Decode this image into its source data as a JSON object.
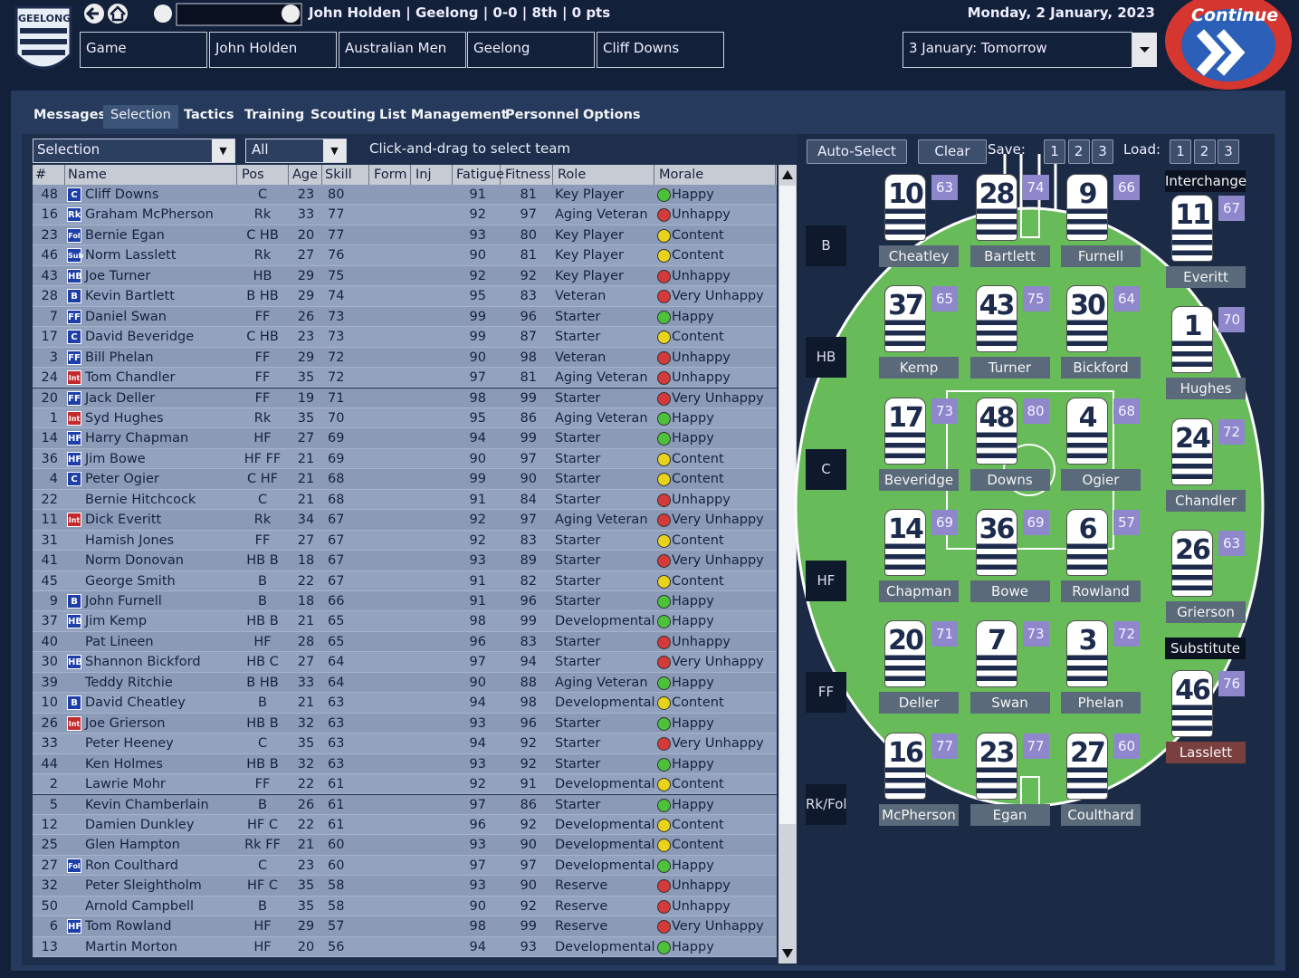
{
  "header": {
    "badge": "GEELONG",
    "status": "John Holden | Geelong | 0-0 | 8th | 0 pts",
    "date": "Monday, 2 January, 2023",
    "breadcrumbs": [
      "Game",
      "John Holden",
      "Australian Men",
      "Geelong",
      "Cliff Downs"
    ],
    "next_day": "3 January: Tomorrow",
    "continue": "Continue"
  },
  "tabs": [
    "Messages",
    "Selection",
    "Tactics",
    "Training",
    "Scouting",
    "List Management",
    "Personnel",
    "Options"
  ],
  "filters": {
    "view": "Selection",
    "group": "All",
    "hint": "Click-and-drag to select team"
  },
  "buttons": {
    "auto": "Auto-Select",
    "clear": "Clear",
    "save": "Save:",
    "save_slots": [
      1,
      2,
      3
    ],
    "load": "Load:",
    "load_slots": [
      1,
      2,
      3
    ]
  },
  "table": {
    "columns": [
      "#",
      "Name",
      "Pos",
      "Age",
      "Skill",
      "Form",
      "Inj",
      "Fatigue",
      "Fitness",
      "Role",
      "Morale"
    ],
    "tag_colors": {
      "Int": "#c32a2e"
    },
    "morale_colors": {
      "Happy": "#4cc23a",
      "Content": "#e8d21c",
      "Unhappy": "#d43a3a",
      "Very Unhappy": "#d43a3a"
    },
    "rows": [
      {
        "num": 48,
        "tag": "C",
        "name": "Cliff Downs",
        "pos": "C",
        "age": 23,
        "skill": 80,
        "fatigue": 91,
        "fitness": 81,
        "role": "Key Player",
        "morale": "Happy"
      },
      {
        "num": 16,
        "tag": "Rk",
        "name": "Graham McPherson",
        "pos": "Rk",
        "age": 33,
        "skill": 77,
        "fatigue": 92,
        "fitness": 97,
        "role": "Aging Veteran",
        "morale": "Unhappy"
      },
      {
        "num": 23,
        "tag": "Fol",
        "name": "Bernie Egan",
        "pos": "C HB",
        "age": 20,
        "skill": 77,
        "fatigue": 93,
        "fitness": 80,
        "role": "Key Player",
        "morale": "Content"
      },
      {
        "num": 46,
        "tag": "Sub",
        "name": "Norm Lasslett",
        "pos": "Rk",
        "age": 27,
        "skill": 76,
        "fatigue": 90,
        "fitness": 81,
        "role": "Key Player",
        "morale": "Content"
      },
      {
        "num": 43,
        "tag": "HB",
        "name": "Joe Turner",
        "pos": "HB",
        "age": 29,
        "skill": 75,
        "fatigue": 92,
        "fitness": 92,
        "role": "Key Player",
        "morale": "Unhappy"
      },
      {
        "num": 28,
        "tag": "B",
        "name": "Kevin Bartlett",
        "pos": "B HB",
        "age": 29,
        "skill": 74,
        "fatigue": 95,
        "fitness": 83,
        "role": "Veteran",
        "morale": "Very Unhappy"
      },
      {
        "num": 7,
        "tag": "FF",
        "name": "Daniel Swan",
        "pos": "FF",
        "age": 26,
        "skill": 73,
        "fatigue": 99,
        "fitness": 96,
        "role": "Starter",
        "morale": "Happy"
      },
      {
        "num": 17,
        "tag": "C",
        "name": "David Beveridge",
        "pos": "C HB",
        "age": 23,
        "skill": 73,
        "fatigue": 99,
        "fitness": 87,
        "role": "Starter",
        "morale": "Content"
      },
      {
        "num": 3,
        "tag": "FF",
        "name": "Bill Phelan",
        "pos": "FF",
        "age": 29,
        "skill": 72,
        "fatigue": 90,
        "fitness": 98,
        "role": "Veteran",
        "morale": "Unhappy"
      },
      {
        "num": 24,
        "tag": "Int",
        "name": "Tom Chandler",
        "pos": "FF",
        "age": 35,
        "skill": 72,
        "fatigue": 97,
        "fitness": 81,
        "role": "Aging Veteran",
        "morale": "Unhappy"
      },
      {
        "num": 20,
        "tag": "FF",
        "name": "Jack Deller",
        "pos": "FF",
        "age": 19,
        "skill": 71,
        "fatigue": 98,
        "fitness": 99,
        "role": "Starter",
        "morale": "Very Unhappy"
      },
      {
        "num": 1,
        "tag": "Int",
        "name": "Syd Hughes",
        "pos": "Rk",
        "age": 35,
        "skill": 70,
        "fatigue": 95,
        "fitness": 86,
        "role": "Aging Veteran",
        "morale": "Happy"
      },
      {
        "num": 14,
        "tag": "HF",
        "name": "Harry Chapman",
        "pos": "HF",
        "age": 27,
        "skill": 69,
        "fatigue": 94,
        "fitness": 99,
        "role": "Starter",
        "morale": "Happy"
      },
      {
        "num": 36,
        "tag": "HF",
        "name": "Jim Bowe",
        "pos": "HF FF",
        "age": 21,
        "skill": 69,
        "fatigue": 90,
        "fitness": 97,
        "role": "Starter",
        "morale": "Content"
      },
      {
        "num": 4,
        "tag": "C",
        "name": "Peter Ogier",
        "pos": "C HF",
        "age": 21,
        "skill": 68,
        "fatigue": 99,
        "fitness": 90,
        "role": "Starter",
        "morale": "Content"
      },
      {
        "num": 22,
        "name": "Bernie Hitchcock",
        "pos": "C",
        "age": 21,
        "skill": 68,
        "fatigue": 91,
        "fitness": 84,
        "role": "Starter",
        "morale": "Unhappy"
      },
      {
        "num": 11,
        "tag": "Int",
        "name": "Dick Everitt",
        "pos": "Rk",
        "age": 34,
        "skill": 67,
        "fatigue": 92,
        "fitness": 97,
        "role": "Aging Veteran",
        "morale": "Very Unhappy"
      },
      {
        "num": 31,
        "name": "Hamish Jones",
        "pos": "FF",
        "age": 27,
        "skill": 67,
        "fatigue": 92,
        "fitness": 83,
        "role": "Starter",
        "morale": "Content"
      },
      {
        "num": 41,
        "name": "Norm Donovan",
        "pos": "HB B",
        "age": 18,
        "skill": 67,
        "fatigue": 93,
        "fitness": 89,
        "role": "Starter",
        "morale": "Very Unhappy"
      },
      {
        "num": 45,
        "name": "George Smith",
        "pos": "B",
        "age": 22,
        "skill": 67,
        "fatigue": 91,
        "fitness": 82,
        "role": "Starter",
        "morale": "Content"
      },
      {
        "num": 9,
        "tag": "B",
        "name": "John Furnell",
        "pos": "B",
        "age": 18,
        "skill": 66,
        "fatigue": 91,
        "fitness": 96,
        "role": "Starter",
        "morale": "Happy"
      },
      {
        "num": 37,
        "tag": "HB",
        "name": "Jim Kemp",
        "pos": "HB B",
        "age": 21,
        "skill": 65,
        "fatigue": 98,
        "fitness": 99,
        "role": "Developmental",
        "morale": "Happy"
      },
      {
        "num": 40,
        "name": "Pat Lineen",
        "pos": "HF",
        "age": 28,
        "skill": 65,
        "fatigue": 96,
        "fitness": 83,
        "role": "Starter",
        "morale": "Unhappy"
      },
      {
        "num": 30,
        "tag": "HB",
        "name": "Shannon Bickford",
        "pos": "HB C",
        "age": 27,
        "skill": 64,
        "fatigue": 97,
        "fitness": 94,
        "role": "Starter",
        "morale": "Very Unhappy"
      },
      {
        "num": 39,
        "name": "Teddy Ritchie",
        "pos": "B HB",
        "age": 33,
        "skill": 64,
        "fatigue": 90,
        "fitness": 88,
        "role": "Aging Veteran",
        "morale": "Happy"
      },
      {
        "num": 10,
        "tag": "B",
        "name": "David Cheatley",
        "pos": "B",
        "age": 21,
        "skill": 63,
        "fatigue": 94,
        "fitness": 98,
        "role": "Developmental",
        "morale": "Content"
      },
      {
        "num": 26,
        "tag": "Int",
        "name": "Joe Grierson",
        "pos": "HB B",
        "age": 32,
        "skill": 63,
        "fatigue": 93,
        "fitness": 96,
        "role": "Starter",
        "morale": "Happy"
      },
      {
        "num": 33,
        "name": "Peter Heeney",
        "pos": "C",
        "age": 35,
        "skill": 63,
        "fatigue": 94,
        "fitness": 92,
        "role": "Starter",
        "morale": "Very Unhappy"
      },
      {
        "num": 44,
        "name": "Ken Holmes",
        "pos": "HB B",
        "age": 32,
        "skill": 63,
        "fatigue": 93,
        "fitness": 92,
        "role": "Starter",
        "morale": "Happy"
      },
      {
        "num": 2,
        "name": "Lawrie Mohr",
        "pos": "FF",
        "age": 22,
        "skill": 61,
        "fatigue": 92,
        "fitness": 91,
        "role": "Developmental",
        "morale": "Content"
      },
      {
        "num": 5,
        "name": "Kevin Chamberlain",
        "pos": "B",
        "age": 26,
        "skill": 61,
        "fatigue": 97,
        "fitness": 86,
        "role": "Starter",
        "morale": "Happy"
      },
      {
        "num": 12,
        "name": "Damien Dunkley",
        "pos": "HF C",
        "age": 22,
        "skill": 61,
        "fatigue": 96,
        "fitness": 92,
        "role": "Developmental",
        "morale": "Content"
      },
      {
        "num": 25,
        "name": "Glen Hampton",
        "pos": "Rk FF",
        "age": 21,
        "skill": 60,
        "fatigue": 93,
        "fitness": 90,
        "role": "Developmental",
        "morale": "Content"
      },
      {
        "num": 27,
        "tag": "Fol",
        "name": "Ron Coulthard",
        "pos": "C",
        "age": 23,
        "skill": 60,
        "fatigue": 97,
        "fitness": 97,
        "role": "Developmental",
        "morale": "Happy"
      },
      {
        "num": 32,
        "name": "Peter Sleightholm",
        "pos": "HF C",
        "age": 35,
        "skill": 58,
        "fatigue": 93,
        "fitness": 90,
        "role": "Reserve",
        "morale": "Unhappy"
      },
      {
        "num": 50,
        "name": "Arnold Campbell",
        "pos": "B",
        "age": 35,
        "skill": 58,
        "fatigue": 90,
        "fitness": 92,
        "role": "Reserve",
        "morale": "Unhappy"
      },
      {
        "num": 6,
        "tag": "HF",
        "name": "Tom Rowland",
        "pos": "HF",
        "age": 29,
        "skill": 57,
        "fatigue": 98,
        "fitness": 99,
        "role": "Reserve",
        "morale": "Very Unhappy"
      },
      {
        "num": 13,
        "name": "Martin Morton",
        "pos": "HF",
        "age": 20,
        "skill": 56,
        "fatigue": 94,
        "fitness": 93,
        "role": "Developmental",
        "morale": "Happy"
      }
    ]
  },
  "field": {
    "lines": [
      {
        "label": "B",
        "players": [
          {
            "number": 10,
            "rating": 63,
            "name": "Cheatley"
          },
          {
            "number": 28,
            "rating": 74,
            "name": "Bartlett"
          },
          {
            "number": 9,
            "rating": 66,
            "name": "Furnell"
          }
        ]
      },
      {
        "label": "HB",
        "players": [
          {
            "number": 37,
            "rating": 65,
            "name": "Kemp"
          },
          {
            "number": 43,
            "rating": 75,
            "name": "Turner"
          },
          {
            "number": 30,
            "rating": 64,
            "name": "Bickford"
          }
        ]
      },
      {
        "label": "C",
        "players": [
          {
            "number": 17,
            "rating": 73,
            "name": "Beveridge"
          },
          {
            "number": 48,
            "rating": 80,
            "name": "Downs"
          },
          {
            "number": 4,
            "rating": 68,
            "name": "Ogier"
          }
        ]
      },
      {
        "label": "HF",
        "players": [
          {
            "number": 14,
            "rating": 69,
            "name": "Chapman"
          },
          {
            "number": 36,
            "rating": 69,
            "name": "Bowe"
          },
          {
            "number": 6,
            "rating": 57,
            "name": "Rowland"
          }
        ]
      },
      {
        "label": "FF",
        "players": [
          {
            "number": 20,
            "rating": 71,
            "name": "Deller"
          },
          {
            "number": 7,
            "rating": 73,
            "name": "Swan"
          },
          {
            "number": 3,
            "rating": 72,
            "name": "Phelan"
          }
        ]
      },
      {
        "label": "Rk/Fol",
        "players": [
          {
            "number": 16,
            "rating": 77,
            "name": "McPherson"
          },
          {
            "number": 23,
            "rating": 77,
            "name": "Egan"
          },
          {
            "number": 27,
            "rating": 60,
            "name": "Coulthard"
          }
        ]
      }
    ],
    "interchange": {
      "title": "Interchange",
      "players": [
        {
          "number": 11,
          "rating": 67,
          "name": "Everitt"
        },
        {
          "number": 1,
          "rating": 70,
          "name": "Hughes"
        },
        {
          "number": 24,
          "rating": 72,
          "name": "Chandler"
        },
        {
          "number": 26,
          "rating": 63,
          "name": "Grierson"
        }
      ]
    },
    "substitute": {
      "title": "Substitute",
      "players": [
        {
          "number": 46,
          "rating": 76,
          "name": "Lasslett"
        }
      ]
    }
  }
}
